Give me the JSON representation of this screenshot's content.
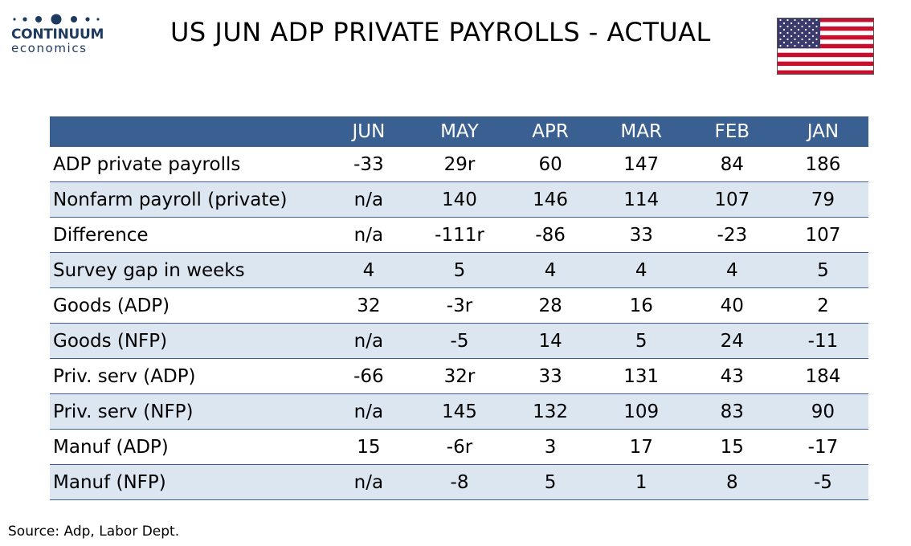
{
  "logo": {
    "top": "CONTINUUM",
    "bottom": "economics"
  },
  "title": "US JUN ADP PRIVATE PAYROLLS - ACTUAL",
  "colors": {
    "header_bg": "#3a5f91",
    "stripe": "#dce6f1",
    "logo": "#1f3a5f"
  },
  "chart_data": {
    "type": "table",
    "columns": [
      "",
      "JUN",
      "MAY",
      "APR",
      "MAR",
      "FEB",
      "JAN"
    ],
    "rows": [
      [
        "ADP private payrolls",
        "-33",
        "29r",
        "60",
        "147",
        "84",
        "186"
      ],
      [
        "Nonfarm payroll (private)",
        "n/a",
        "140",
        "146",
        "114",
        "107",
        "79"
      ],
      [
        "Difference",
        "n/a",
        "-111r",
        "-86",
        "33",
        "-23",
        "107"
      ],
      [
        "Survey gap in weeks",
        "4",
        "5",
        "4",
        "4",
        "4",
        "5"
      ],
      [
        "Goods (ADP)",
        "32",
        "-3r",
        "28",
        "16",
        "40",
        "2"
      ],
      [
        "Goods (NFP)",
        "n/a",
        "-5",
        "14",
        "5",
        "24",
        "-11"
      ],
      [
        "Priv. serv (ADP)",
        "-66",
        "32r",
        "33",
        "131",
        "43",
        "184"
      ],
      [
        "Priv. serv (NFP)",
        "n/a",
        "145",
        "132",
        "109",
        "83",
        "90"
      ],
      [
        "Manuf (ADP)",
        "15",
        "-6r",
        "3",
        "17",
        "15",
        "-17"
      ],
      [
        "Manuf (NFP)",
        "n/a",
        "-8",
        "5",
        "1",
        "8",
        "-5"
      ]
    ]
  },
  "source": "Source: Adp, Labor Dept."
}
